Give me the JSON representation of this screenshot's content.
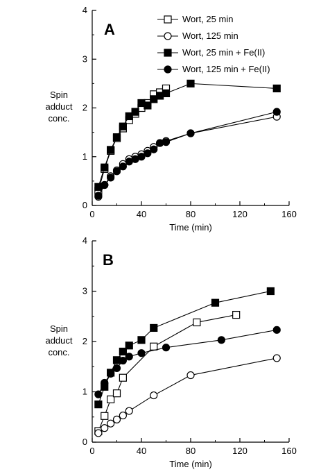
{
  "chart_data": [
    {
      "type": "line",
      "panel_label": "A",
      "xlabel": "Time (min)",
      "ylabel": [
        "Spin",
        "adduct",
        "conc."
      ],
      "xlim": [
        0,
        160
      ],
      "ylim": [
        0,
        4
      ],
      "xticks": [
        "0",
        "40",
        "80",
        "120",
        "160"
      ],
      "yticks": [
        "0",
        "1",
        "2",
        "3",
        "4"
      ],
      "grid": false,
      "legend_position": "top-right",
      "series": [
        {
          "name": "Wort, 25 min",
          "marker": "square",
          "fill": "open",
          "x": [
            5,
            10,
            15,
            20,
            25,
            30,
            35,
            40,
            45,
            50,
            55,
            60
          ],
          "y": [
            0.3,
            0.75,
            1.12,
            1.38,
            1.58,
            1.75,
            1.88,
            2.0,
            2.1,
            2.28,
            2.32,
            2.4
          ]
        },
        {
          "name": "Wort, 125 min",
          "marker": "circle",
          "fill": "open",
          "x": [
            5,
            10,
            15,
            20,
            25,
            30,
            35,
            40,
            45,
            50,
            55,
            60,
            80,
            150
          ],
          "y": [
            0.18,
            0.42,
            0.6,
            0.72,
            0.85,
            0.95,
            1.0,
            1.05,
            1.12,
            1.2,
            1.28,
            1.32,
            1.48,
            1.82
          ]
        },
        {
          "name": "Wort, 25 min + Fe(II)",
          "marker": "square",
          "fill": "filled",
          "x": [
            5,
            10,
            15,
            20,
            25,
            30,
            35,
            40,
            45,
            50,
            55,
            60,
            80,
            150
          ],
          "y": [
            0.38,
            0.78,
            1.14,
            1.4,
            1.62,
            1.83,
            1.92,
            2.1,
            2.05,
            2.18,
            2.25,
            2.3,
            2.5,
            2.4
          ]
        },
        {
          "name": "Wort, 125 min + Fe(II)",
          "marker": "circle",
          "fill": "filled",
          "x": [
            5,
            10,
            15,
            20,
            25,
            30,
            35,
            40,
            45,
            50,
            55,
            60,
            80,
            150
          ],
          "y": [
            0.2,
            0.42,
            0.57,
            0.7,
            0.8,
            0.9,
            0.95,
            1.0,
            1.07,
            1.15,
            1.28,
            1.3,
            1.48,
            1.92
          ]
        }
      ]
    },
    {
      "type": "line",
      "panel_label": "B",
      "xlabel": "Time (min)",
      "ylabel": [
        "Spin",
        "adduct",
        "conc."
      ],
      "xlim": [
        0,
        160
      ],
      "ylim": [
        0,
        4
      ],
      "xticks": [
        "0",
        "40",
        "80",
        "120",
        "160"
      ],
      "yticks": [
        "0",
        "1",
        "2",
        "3",
        "4"
      ],
      "grid": false,
      "legend_position": "none",
      "series": [
        {
          "marker": "square",
          "fill": "open",
          "x": [
            5,
            10,
            15,
            20,
            25,
            50,
            85,
            117
          ],
          "y": [
            0.22,
            0.52,
            0.85,
            0.97,
            1.28,
            1.9,
            2.38,
            2.53
          ]
        },
        {
          "marker": "circle",
          "fill": "open",
          "x": [
            5,
            10,
            15,
            20,
            25,
            30,
            50,
            80,
            150
          ],
          "y": [
            0.18,
            0.28,
            0.37,
            0.45,
            0.53,
            0.62,
            0.93,
            1.33,
            1.67
          ]
        },
        {
          "marker": "square",
          "fill": "filled",
          "x": [
            5,
            10,
            15,
            20,
            25,
            30,
            40,
            50,
            100,
            145
          ],
          "y": [
            0.75,
            1.1,
            1.38,
            1.63,
            1.8,
            1.92,
            2.03,
            2.27,
            2.77,
            3.0
          ]
        },
        {
          "marker": "circle",
          "fill": "filled",
          "x": [
            5,
            10,
            15,
            20,
            25,
            30,
            40,
            60,
            105,
            150
          ],
          "y": [
            0.95,
            1.18,
            1.36,
            1.47,
            1.62,
            1.7,
            1.77,
            1.88,
            2.03,
            2.23
          ]
        }
      ]
    }
  ]
}
